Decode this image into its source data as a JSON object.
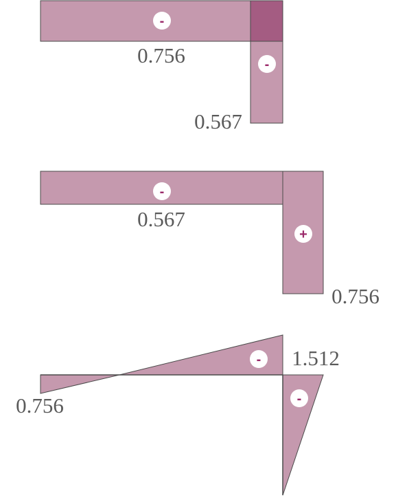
{
  "colors": {
    "fill": "#c599ae",
    "overlap_fill": "#a45c82",
    "stroke": "#4a4a4a",
    "label": "#5a5a5a",
    "sign": "#9b2a6a",
    "sign_bg": "#ffffff"
  },
  "diagrams": [
    {
      "signs": [
        "-",
        "-"
      ],
      "labels": [
        "0.756",
        "0.567"
      ]
    },
    {
      "signs": [
        "-",
        "+"
      ],
      "labels": [
        "0.567",
        "0.756"
      ]
    },
    {
      "signs": [
        "-",
        "-"
      ],
      "labels": [
        "1.512",
        "0.756"
      ]
    }
  ]
}
